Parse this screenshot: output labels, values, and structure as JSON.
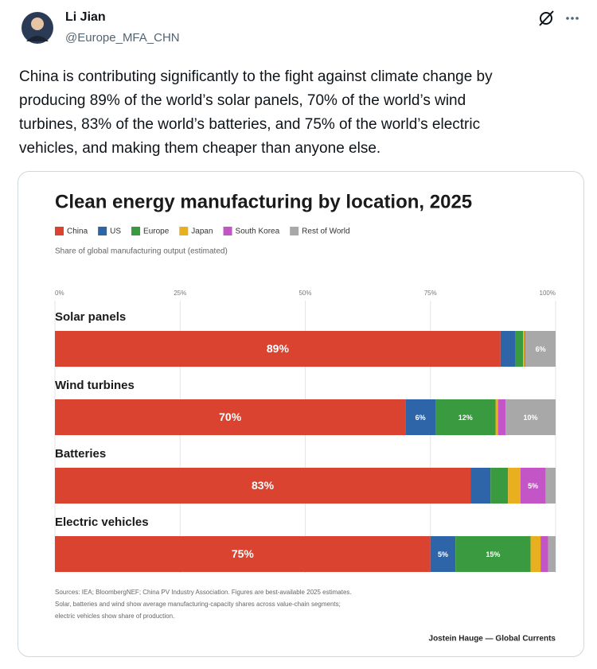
{
  "post": {
    "author": "Li Jian",
    "handle": "@Europe_MFA_CHN",
    "text_lines": [
      "China is contributing significantly to the fight against climate change by",
      "producing 89% of the world’s solar panels, 70% of the world’s wind",
      "turbines, 83% of the world’s batteries, and 75% of the world’s electric",
      "vehicles, and making them cheaper than anyone else."
    ]
  },
  "chart_data": {
    "type": "bar",
    "orientation": "horizontal",
    "stacked": true,
    "title": "Clean energy manufacturing by location, 2025",
    "subtitle": "Share of global manufacturing output (estimated)",
    "categories": [
      "Solar panels",
      "Wind turbines",
      "Batteries",
      "Electric vehicles"
    ],
    "series": [
      {
        "name": "China",
        "color": "#d9432f",
        "values": [
          89,
          70,
          83,
          75
        ],
        "value_labels": [
          "89%",
          "70%",
          "83%",
          "75%"
        ]
      },
      {
        "name": "US",
        "color": "#2e64a8",
        "values": [
          3,
          6,
          4,
          5
        ],
        "value_labels": [
          null,
          "6%",
          null,
          "5%"
        ]
      },
      {
        "name": "Europe",
        "color": "#3a9a3f",
        "values": [
          1.5,
          12,
          3.5,
          15
        ],
        "value_labels": [
          null,
          "12%",
          null,
          "15%"
        ]
      },
      {
        "name": "Japan",
        "color": "#e8b020",
        "values": [
          0.3,
          0.5,
          2.5,
          2
        ],
        "value_labels": [
          null,
          null,
          null,
          null
        ]
      },
      {
        "name": "South Korea",
        "color": "#c455c6",
        "values": [
          0.2,
          1.5,
          5,
          1.5
        ],
        "value_labels": [
          null,
          null,
          "5%",
          null
        ]
      },
      {
        "name": "Rest of World",
        "color": "#a8a8a8",
        "values": [
          6,
          10,
          2,
          1.5
        ],
        "value_labels": [
          "6%",
          "10%",
          null,
          null
        ]
      }
    ],
    "xlim": [
      0,
      100
    ],
    "xticks": [
      {
        "value": 0,
        "label": "0%"
      },
      {
        "value": 25,
        "label": "25%"
      },
      {
        "value": 50,
        "label": "50%"
      },
      {
        "value": 75,
        "label": "75%"
      },
      {
        "value": 100,
        "label": "100%"
      }
    ],
    "grid": true,
    "notes": [
      "Sources: IEA; BloombergNEF; China PV Industry Association. Figures are best-available 2025 estimates.",
      "Solar, batteries and wind show average manufacturing-capacity shares across value-chain segments;",
      "electric vehicles show share of production."
    ],
    "credit": "Jostein Hauge — Global Currents"
  }
}
